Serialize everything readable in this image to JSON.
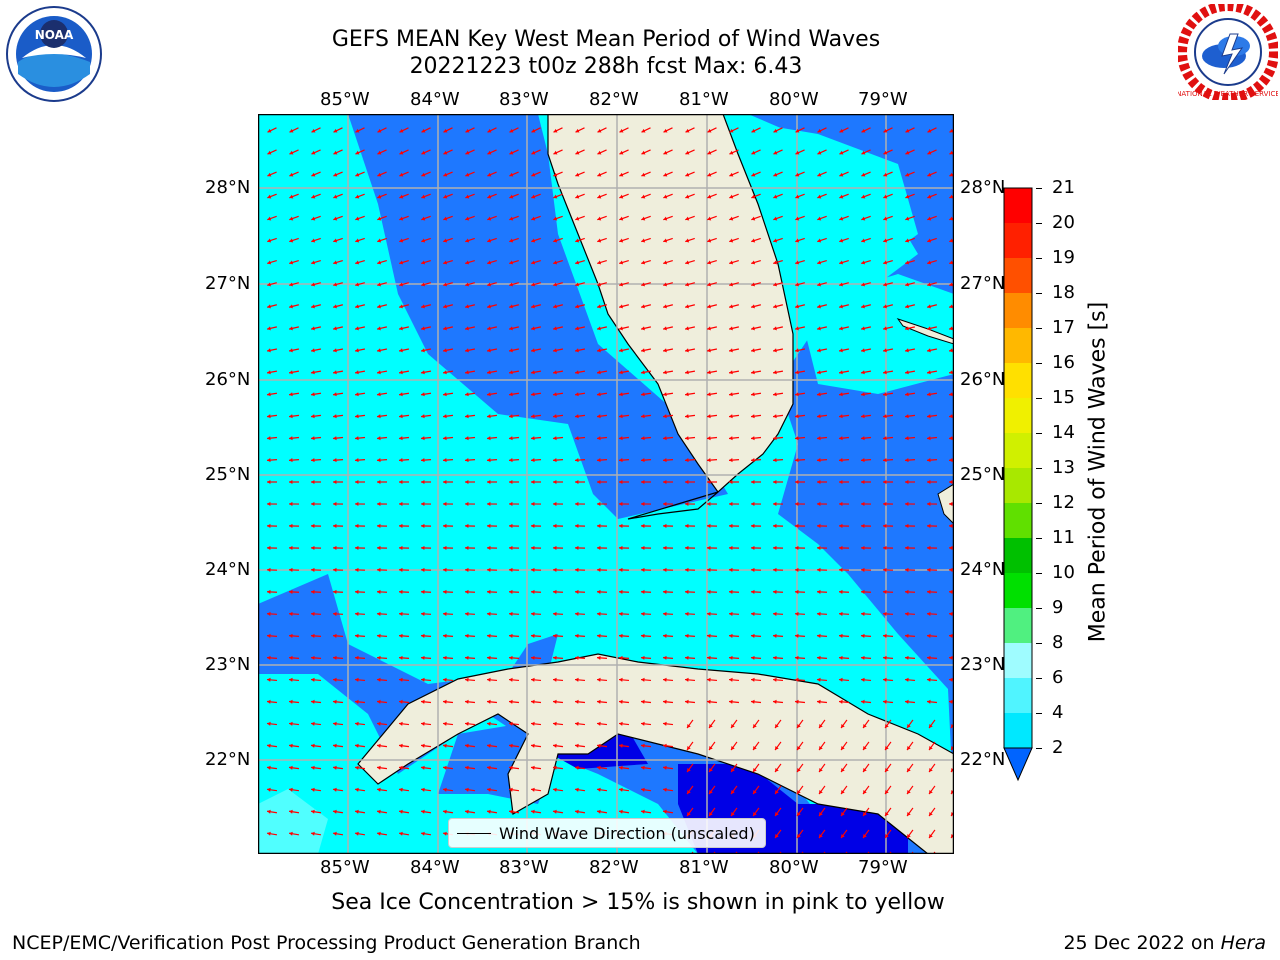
{
  "header": {
    "title_line1": "GEFS MEAN Key West Mean Period of Wind Waves",
    "title_line2": "20221223 t00z 288h fcst   Max: 6.43"
  },
  "logos": {
    "noaa_text": "NOAA",
    "nws_text": "NATIONAL WEATHER SERVICE"
  },
  "map": {
    "lon_labels": [
      "85°W",
      "84°W",
      "83°W",
      "82°W",
      "81°W",
      "80°W",
      "79°W"
    ],
    "lat_labels": [
      "28°N",
      "27°N",
      "26°N",
      "25°N",
      "24°N",
      "23°N",
      "22°N"
    ],
    "legend_label": "Wind Wave Direction (unscaled)"
  },
  "colorbar": {
    "title": "Mean Period of Wind Waves [s]",
    "ticks": [
      "2",
      "4",
      "6",
      "8",
      "9",
      "10",
      "11",
      "12",
      "13",
      "14",
      "15",
      "16",
      "17",
      "18",
      "19",
      "20",
      "21"
    ],
    "colors": [
      "#0064ff",
      "#00e8ff",
      "#50f4ff",
      "#9ffcff",
      "#50f080",
      "#00e000",
      "#00c000",
      "#60e000",
      "#a8e800",
      "#d0f000",
      "#f0f000",
      "#ffe000",
      "#ffb800",
      "#ff8c00",
      "#ff5000",
      "#ff2000",
      "#ff0000"
    ]
  },
  "footer": {
    "note": "Sea Ice Concentration > 15% is shown in pink to yellow",
    "left": "NCEP/EMC/Verification Post Processing Product Generation Branch",
    "right_date": "25 Dec 2022 on ",
    "right_host": "Hera"
  },
  "colors": {
    "cyan": "#00ffff",
    "blue": "#1e78ff",
    "deep": "#0000e6",
    "light": "#50ffff",
    "land": "#efeedc"
  }
}
